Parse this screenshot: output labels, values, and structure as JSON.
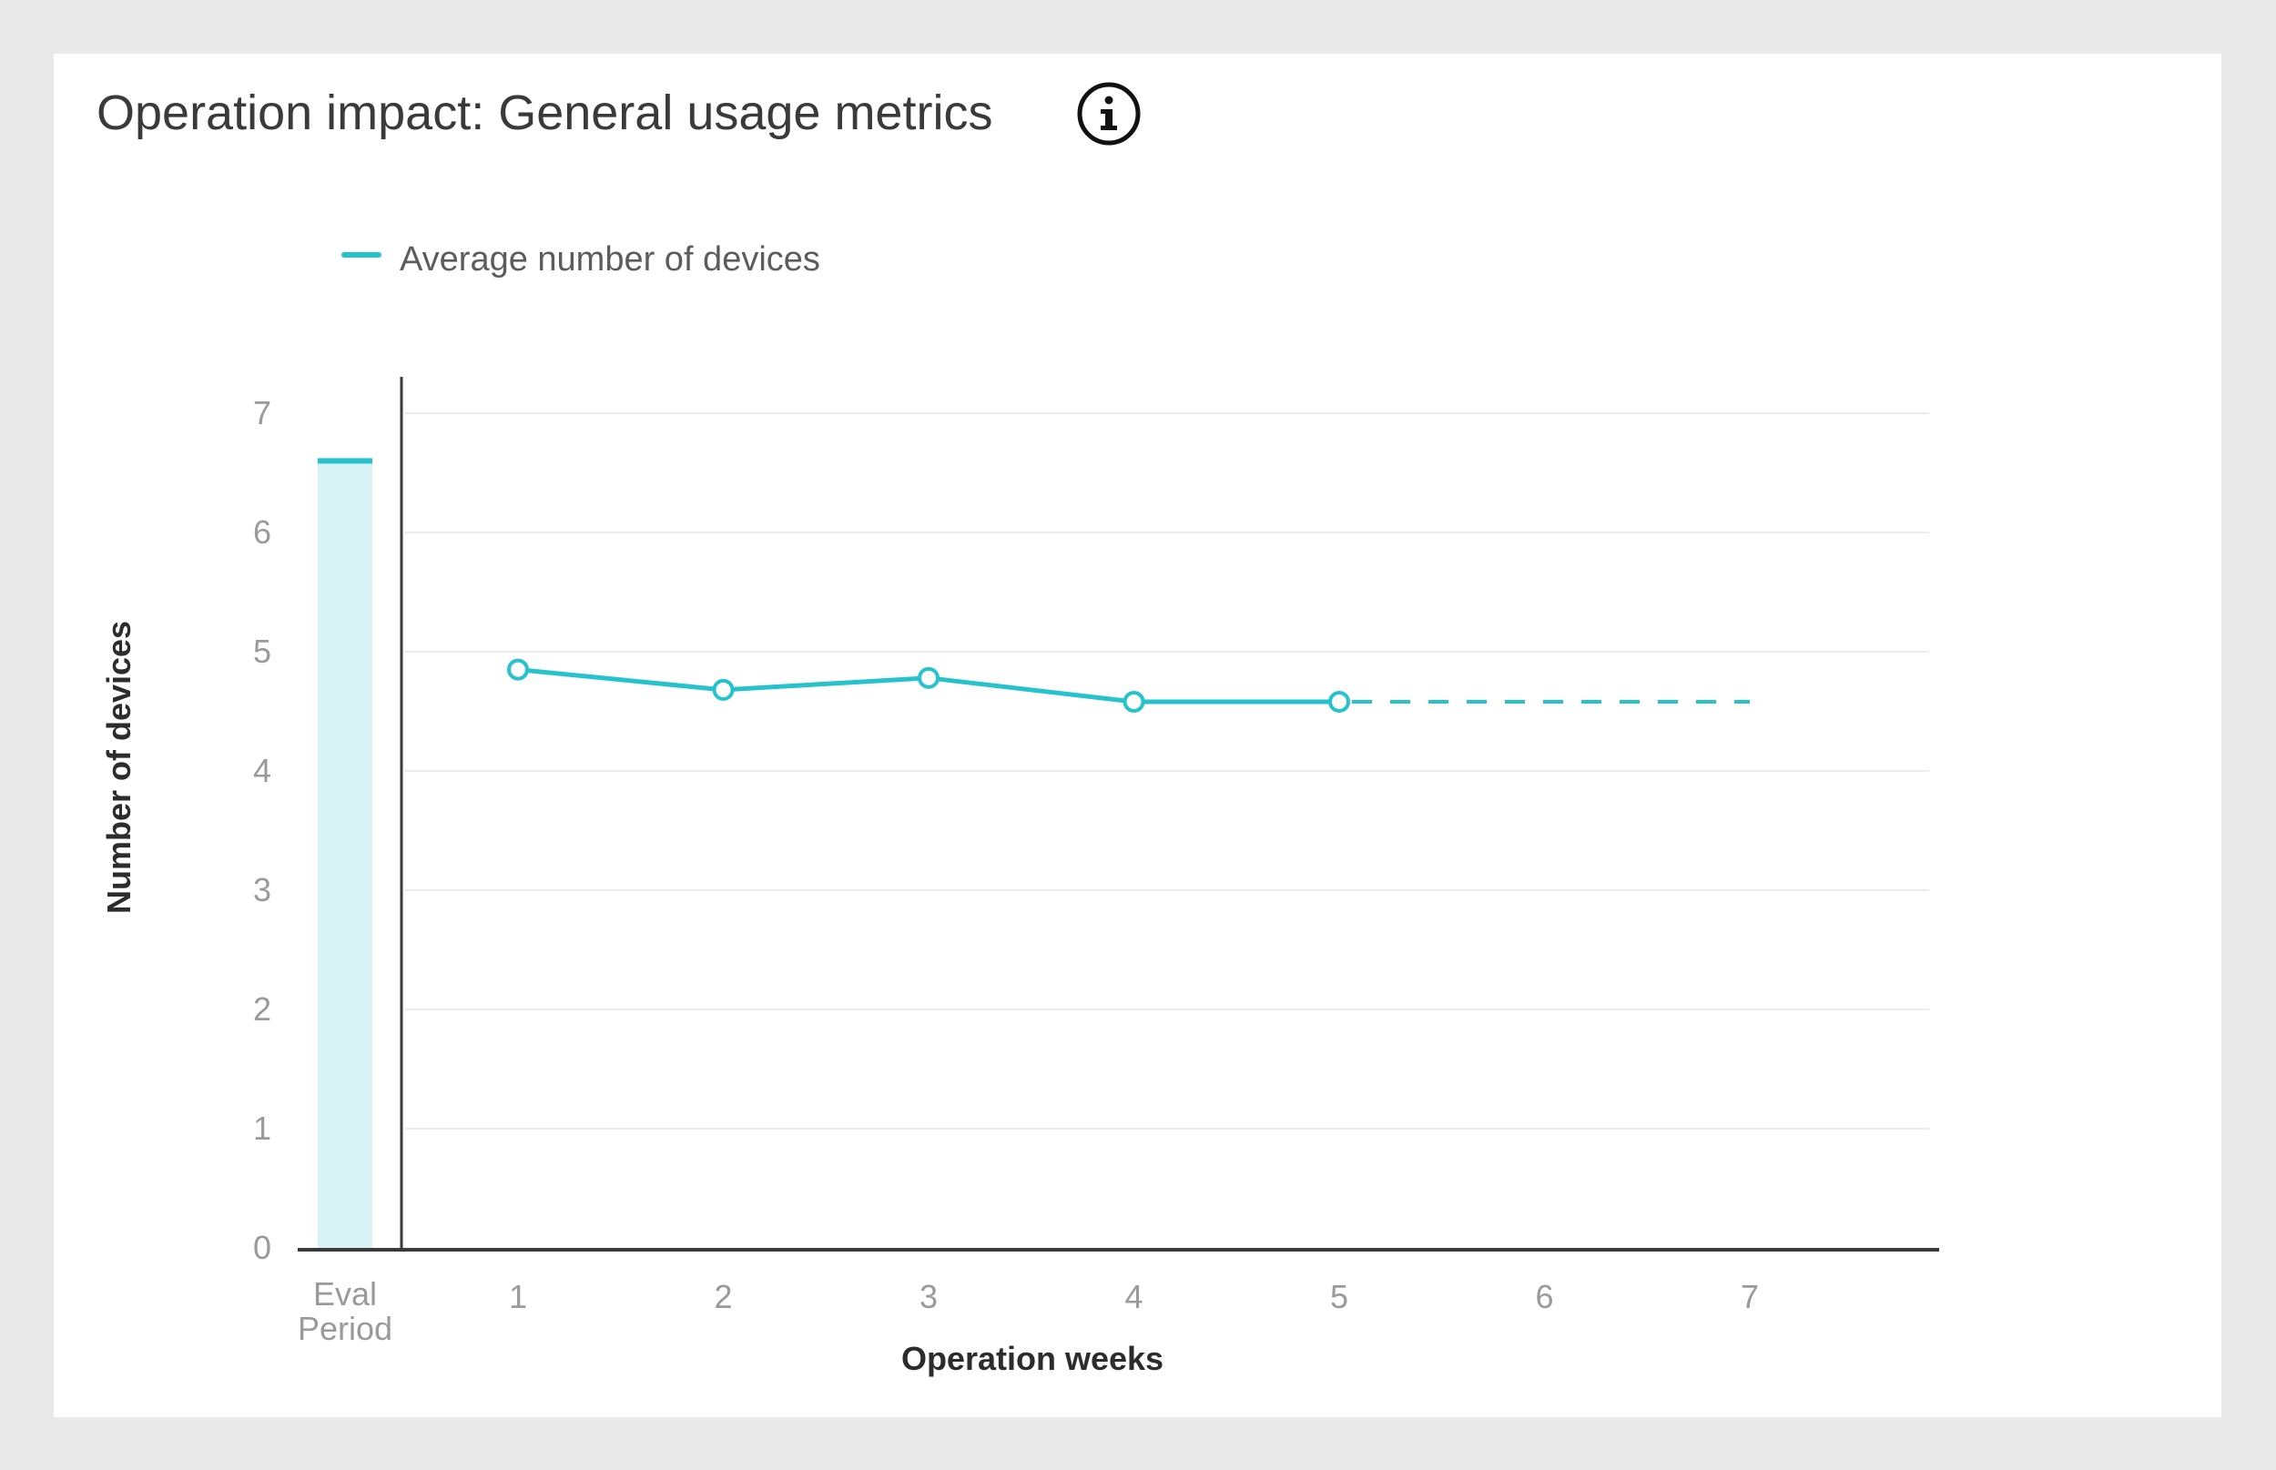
{
  "title": "Operation impact: General usage metrics",
  "icons": {
    "info": "info-circle-icon"
  },
  "colors": {
    "series": "#26c2cd",
    "band": "#d9f2f5",
    "grid": "#ececec",
    "axis": "#3a3a3a",
    "ticks": "#9a9a9a"
  },
  "legend": [
    {
      "label": "Average number of devices",
      "color": "#26c2cd"
    }
  ],
  "chart_data": {
    "type": "line",
    "title": "Operation impact: General usage metrics",
    "xlabel": "Operation weeks",
    "ylabel": "Number of devices",
    "ylim": [
      0,
      7
    ],
    "yticks": [
      "0",
      "1",
      "2",
      "3",
      "4",
      "5",
      "6",
      "7"
    ],
    "grid": true,
    "legend_position": "top-left",
    "baseline": {
      "label_lines": [
        "Eval",
        "Period"
      ],
      "value": 6.6
    },
    "x": [
      "1",
      "2",
      "3",
      "4",
      "5",
      "6",
      "7"
    ],
    "series": [
      {
        "name": "Average number of devices",
        "values": [
          4.85,
          4.68,
          4.78,
          4.58,
          4.58,
          null,
          null
        ],
        "projection": {
          "from": "5",
          "to": "7",
          "value": 4.58,
          "style": "dashed"
        }
      }
    ]
  }
}
